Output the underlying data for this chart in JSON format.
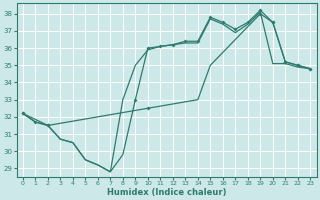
{
  "title": "",
  "xlabel": "Humidex (Indice chaleur)",
  "ylabel": "",
  "bg_color": "#cce8e8",
  "grid_color": "#ffffff",
  "line_color": "#2e7b6e",
  "xlim": [
    -0.5,
    23.5
  ],
  "ylim": [
    28.5,
    38.6
  ],
  "yticks": [
    29,
    30,
    31,
    32,
    33,
    34,
    35,
    36,
    37,
    38
  ],
  "xticks": [
    0,
    1,
    2,
    3,
    4,
    5,
    6,
    7,
    8,
    9,
    10,
    11,
    12,
    13,
    14,
    15,
    16,
    17,
    18,
    19,
    20,
    21,
    22,
    23
  ],
  "line_zigzag_x": [
    0,
    1,
    2,
    3,
    4,
    5,
    6,
    7,
    8,
    9,
    10,
    11,
    12,
    13,
    14,
    15,
    16,
    17,
    18,
    19,
    20,
    21,
    22,
    23
  ],
  "line_zigzag_y": [
    32.2,
    31.7,
    31.5,
    30.7,
    30.5,
    29.5,
    29.2,
    28.8,
    29.8,
    33.0,
    36.0,
    36.1,
    36.2,
    36.4,
    36.4,
    37.8,
    37.5,
    37.1,
    37.5,
    38.2,
    37.5,
    35.2,
    35.0,
    34.8
  ],
  "line_mid_x": [
    0,
    1,
    2,
    3,
    4,
    5,
    6,
    7,
    8,
    9,
    10,
    11,
    12,
    13,
    14,
    15,
    16,
    17,
    18,
    19,
    20,
    21,
    22,
    23
  ],
  "line_mid_y": [
    32.2,
    31.7,
    31.5,
    30.7,
    30.5,
    29.5,
    29.2,
    28.8,
    33.0,
    35.0,
    35.9,
    36.1,
    36.2,
    36.3,
    36.3,
    37.7,
    37.4,
    36.9,
    37.4,
    38.1,
    35.1,
    35.1,
    34.9,
    34.8
  ],
  "line_straight_x": [
    0,
    2,
    10,
    14,
    15,
    19,
    20,
    21,
    22,
    23
  ],
  "line_straight_y": [
    32.2,
    31.5,
    32.5,
    33.0,
    35.0,
    38.0,
    37.5,
    35.2,
    35.0,
    34.8
  ],
  "markers_zigzag_x": [
    0,
    1,
    2,
    9,
    10,
    11,
    12,
    13,
    14,
    15,
    16,
    17,
    18,
    19,
    20,
    21,
    22,
    23
  ],
  "markers_zigzag_y": [
    32.2,
    31.7,
    31.5,
    33.0,
    36.0,
    36.1,
    36.2,
    36.4,
    36.4,
    37.8,
    37.5,
    37.1,
    37.5,
    38.2,
    37.5,
    35.2,
    35.0,
    34.8
  ],
  "markers_str_x": [
    0,
    2,
    10,
    19,
    20,
    21,
    22,
    23
  ],
  "markers_str_y": [
    32.2,
    31.5,
    32.5,
    38.0,
    37.5,
    35.2,
    35.0,
    34.8
  ]
}
